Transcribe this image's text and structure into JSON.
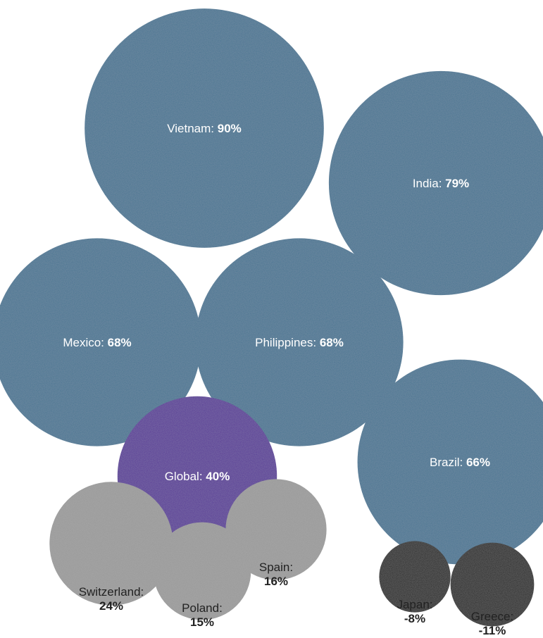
{
  "chart_data": {
    "type": "bubble",
    "title": "",
    "unit": "%",
    "colors": {
      "high": "#4a7592",
      "global": "#5a3e96",
      "low": "#999999",
      "negative": "#2b2b2b",
      "label_inside": "#ffffff",
      "label_outside": "#222222"
    },
    "items": [
      {
        "name": "Vietnam",
        "label": "Vietnam:",
        "value": 90,
        "display": "90%",
        "group": "high",
        "label_position": "inside"
      },
      {
        "name": "India",
        "label": "India:",
        "value": 79,
        "display": "79%",
        "group": "high",
        "label_position": "inside"
      },
      {
        "name": "Mexico",
        "label": "Mexico:",
        "value": 68,
        "display": "68%",
        "group": "high",
        "label_position": "inside"
      },
      {
        "name": "Philippines",
        "label": "Philippines:",
        "value": 68,
        "display": "68%",
        "group": "high",
        "label_position": "inside"
      },
      {
        "name": "Brazil",
        "label": "Brazil:",
        "value": 66,
        "display": "66%",
        "group": "high",
        "label_position": "inside"
      },
      {
        "name": "Global",
        "label": "Global:",
        "value": 40,
        "display": "40%",
        "group": "global",
        "label_position": "inside"
      },
      {
        "name": "Switzerland",
        "label": "Switzerland:",
        "value": 24,
        "display": "24%",
        "group": "low",
        "label_position": "below"
      },
      {
        "name": "Spain",
        "label": "Spain:",
        "value": 16,
        "display": "16%",
        "group": "low",
        "label_position": "below"
      },
      {
        "name": "Poland",
        "label": "Poland:",
        "value": 15,
        "display": "15%",
        "group": "low",
        "label_position": "below"
      },
      {
        "name": "Japan",
        "label": "Japan:",
        "value": -8,
        "display": "-8%",
        "group": "negative",
        "label_position": "below"
      },
      {
        "name": "Greece",
        "label": "Greece:",
        "value": -11,
        "display": "-11%",
        "group": "negative",
        "label_position": "below"
      }
    ]
  }
}
